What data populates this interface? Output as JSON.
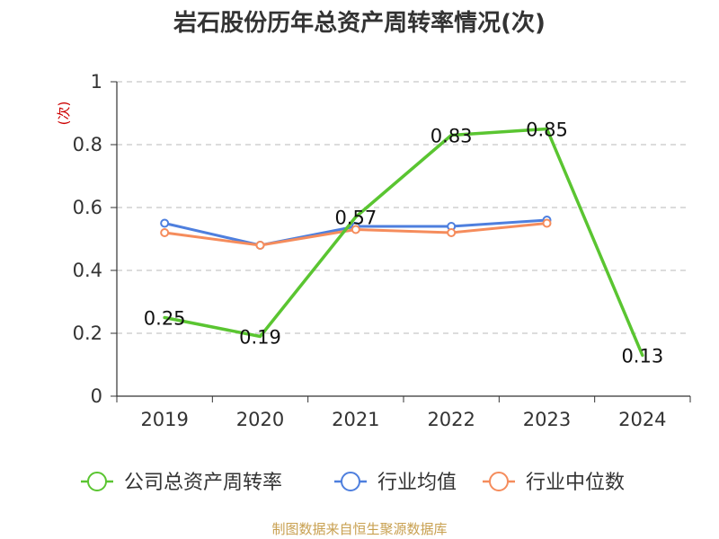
{
  "chart_data": {
    "type": "line",
    "title": "岩石股份历年总资产周转率情况(次)",
    "unit_label": "(次)",
    "categories": [
      "2019",
      "2020",
      "2021",
      "2022",
      "2023",
      "2024"
    ],
    "ylim": [
      0,
      1
    ],
    "yticks": [
      "0",
      "0.2",
      "0.4",
      "0.6",
      "0.8",
      "1"
    ],
    "grid": true,
    "legend_position": "bottom",
    "series": [
      {
        "name": "公司总资产周转率",
        "color": "#5ac531",
        "values": [
          0.25,
          0.19,
          0.57,
          0.83,
          0.85,
          0.13
        ],
        "labels": [
          "0.25",
          "0.19",
          "0.57",
          "0.83",
          "0.85",
          "0.13"
        ]
      },
      {
        "name": "行业均值",
        "color": "#4e7fde",
        "values": [
          0.55,
          0.48,
          0.54,
          0.54,
          0.56,
          null
        ]
      },
      {
        "name": "行业中位数",
        "color": "#f58c5c",
        "values": [
          0.52,
          0.48,
          0.53,
          0.52,
          0.55,
          null
        ]
      }
    ],
    "source": "制图数据来自恒生聚源数据库"
  }
}
